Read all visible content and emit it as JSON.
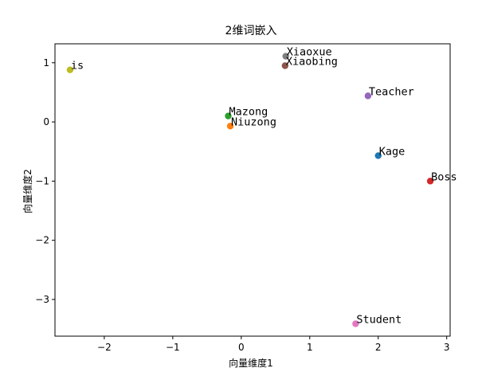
{
  "chart_data": {
    "type": "scatter",
    "title": "2维词嵌入",
    "xlabel": "向量维度1",
    "ylabel": "向量维度2",
    "xlim": [
      -2.72,
      3.05
    ],
    "ylim": [
      -3.62,
      1.32
    ],
    "xticks": [
      -2,
      -1,
      0,
      1,
      2,
      3
    ],
    "yticks": [
      -3,
      -2,
      -1,
      0,
      1
    ],
    "xtick_labels": [
      "−2",
      "−1",
      "0",
      "1",
      "2",
      "3"
    ],
    "ytick_labels": [
      "−3",
      "−2",
      "−1",
      "0",
      "1"
    ],
    "grid": false,
    "points": [
      {
        "label": "Kage",
        "x": 2.0,
        "y": -0.57,
        "color": "#1f77b4"
      },
      {
        "label": "Niuzong",
        "x": -0.16,
        "y": -0.07,
        "color": "#ff7f0e"
      },
      {
        "label": "Mazong",
        "x": -0.19,
        "y": 0.1,
        "color": "#2ca02c"
      },
      {
        "label": "Boss",
        "x": 2.76,
        "y": -1.0,
        "color": "#d62728"
      },
      {
        "label": "Teacher",
        "x": 1.85,
        "y": 0.44,
        "color": "#9467bd"
      },
      {
        "label": "Xiaobing",
        "x": 0.64,
        "y": 0.95,
        "color": "#8c564b"
      },
      {
        "label": "Student",
        "x": 1.67,
        "y": -3.41,
        "color": "#e377c2"
      },
      {
        "label": "Xiaoxue",
        "x": 0.65,
        "y": 1.11,
        "color": "#7f7f7f"
      },
      {
        "label": "is",
        "x": -2.5,
        "y": 0.88,
        "color": "#bcbd22"
      }
    ]
  }
}
